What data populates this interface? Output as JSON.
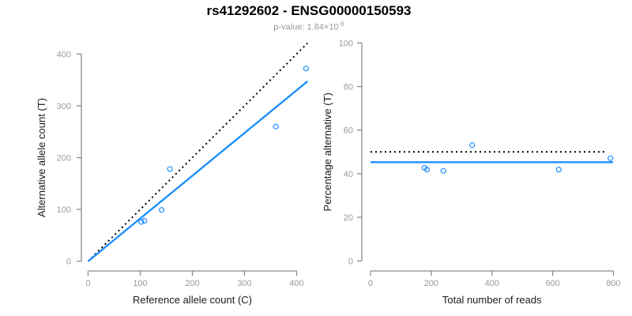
{
  "header": {
    "title": "rs41292602 - ENSG00000150593",
    "pvalue_text": "p-value: 1.84×10",
    "pvalue_exponent": "-6"
  },
  "colors": {
    "accent_blue": "#1E90FF",
    "dotted_line": "#000000",
    "axis_line": "#8a8a8a",
    "tick_label": "#9a9a9a",
    "axis_title": "#1a1a1a"
  },
  "chart_data": [
    {
      "name": "allele-count-scatter",
      "type": "scatter",
      "xlabel": "Reference allele count (C)",
      "ylabel": "Alternative allele count (T)",
      "xticks": [
        0,
        100,
        200,
        300,
        400
      ],
      "yticks": [
        0,
        100,
        200,
        300,
        400
      ],
      "xlim": [
        0,
        421
      ],
      "ylim": [
        0,
        421
      ],
      "points": [
        [
          102,
          76
        ],
        [
          108,
          78
        ],
        [
          141,
          99
        ],
        [
          157,
          178
        ],
        [
          360,
          260
        ],
        [
          418,
          372
        ]
      ],
      "lines": [
        {
          "name": "identity-line",
          "style": "dotted",
          "color": "#000000",
          "slope": 1,
          "intercept": 0,
          "x_range": [
            0,
            421
          ]
        },
        {
          "name": "regression-line",
          "style": "solid",
          "color": "#1E90FF",
          "slope": 0.825,
          "intercept": 0,
          "x_range": [
            0,
            421
          ]
        }
      ]
    },
    {
      "name": "percentage-alternative-scatter",
      "type": "scatter",
      "xlabel": "Total number of reads",
      "ylabel": "Percentage alternative (T)",
      "xticks": [
        0,
        200,
        400,
        600,
        800
      ],
      "yticks": [
        0,
        20,
        40,
        60,
        80,
        100
      ],
      "xlim": [
        0,
        800
      ],
      "ylim": [
        0,
        100
      ],
      "points": [
        [
          178,
          42.7
        ],
        [
          186,
          41.9
        ],
        [
          240,
          41.3
        ],
        [
          335,
          53.1
        ],
        [
          620,
          41.9
        ],
        [
          790,
          47.1
        ]
      ],
      "lines": [
        {
          "name": "expected-50pct-line",
          "style": "dotted",
          "color": "#000000",
          "y_value": 50,
          "x_range": [
            0,
            779
          ]
        },
        {
          "name": "mean-percentage-line",
          "style": "solid",
          "color": "#1E90FF",
          "y_value": 45.3,
          "x_range": [
            0,
            799
          ]
        }
      ]
    }
  ]
}
